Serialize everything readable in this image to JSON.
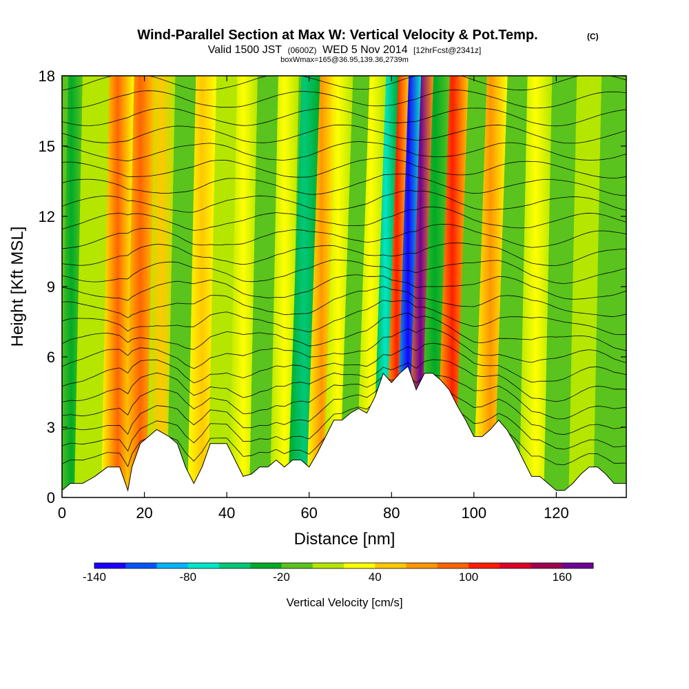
{
  "chart_data": {
    "type": "heatmap",
    "title": "Wind-Parallel Section at Max W: Vertical Velocity & Pot.Temp.",
    "title_mark": "(C)",
    "subtitle_valid": "Valid 1500 JST",
    "subtitle_z": "(0600Z)",
    "subtitle_date": "WED 5 Nov 2014",
    "subtitle_fcst": "[12hrFcst@2341z]",
    "subtitle2": "boxWmax=165@36.95,139.36,2739m",
    "xlabel": "Distance [nm]",
    "ylabel": "Height [Kft MSL]",
    "xlim": [
      0,
      137
    ],
    "ylim": [
      0,
      18
    ],
    "xticks": [
      "0",
      "20",
      "40",
      "60",
      "80",
      "100",
      "120"
    ],
    "yticks": [
      "0",
      "3",
      "6",
      "9",
      "12",
      "15",
      "18"
    ],
    "colorbar": {
      "label": "Vertical Velocity [cm/s]",
      "range": [
        -140,
        180
      ],
      "ticks": [
        "-140",
        "-80",
        "-20",
        "40",
        "100",
        "160"
      ],
      "colors": [
        "#1a00ff",
        "#0055ff",
        "#00b4ff",
        "#00e6c8",
        "#00c878",
        "#00aa28",
        "#5ac31e",
        "#b4e600",
        "#ffff00",
        "#ffc800",
        "#ff9600",
        "#ff6400",
        "#ff1e00",
        "#dc0028",
        "#a00050",
        "#6e0096"
      ]
    },
    "wind_bands": [
      {
        "x": 1,
        "w": -25
      },
      {
        "x": 7,
        "w": 10
      },
      {
        "x": 14,
        "w": 80
      },
      {
        "x": 19,
        "w": 95
      },
      {
        "x": 24,
        "w": 40
      },
      {
        "x": 29,
        "w": -15
      },
      {
        "x": 34,
        "w": 45
      },
      {
        "x": 39,
        "w": 0
      },
      {
        "x": 44,
        "w": 35
      },
      {
        "x": 49,
        "w": -15
      },
      {
        "x": 54,
        "w": 30
      },
      {
        "x": 59,
        "w": -60
      },
      {
        "x": 63,
        "w": 75
      },
      {
        "x": 67,
        "w": 20
      },
      {
        "x": 71,
        "w": -20
      },
      {
        "x": 75,
        "w": 35
      },
      {
        "x": 79,
        "w": -65
      },
      {
        "x": 81,
        "w": 105
      },
      {
        "x": 84,
        "w": -140
      },
      {
        "x": 87,
        "w": 160
      },
      {
        "x": 90,
        "w": -35
      },
      {
        "x": 95,
        "w": 115
      },
      {
        "x": 99,
        "w": -20
      },
      {
        "x": 104,
        "w": 70
      },
      {
        "x": 109,
        "w": -20
      },
      {
        "x": 115,
        "w": 20
      },
      {
        "x": 121,
        "w": -10
      },
      {
        "x": 127,
        "w": 15
      },
      {
        "x": 133,
        "w": -20
      }
    ],
    "terrain": [
      [
        0,
        0.3
      ],
      [
        2,
        0.6
      ],
      [
        5,
        0.6
      ],
      [
        8,
        0.9
      ],
      [
        11,
        1.3
      ],
      [
        14,
        1.3
      ],
      [
        15,
        0.8
      ],
      [
        16,
        0.3
      ],
      [
        17,
        1.3
      ],
      [
        19,
        2.3
      ],
      [
        21,
        2.6
      ],
      [
        23,
        2.9
      ],
      [
        26,
        2.6
      ],
      [
        28,
        2.3
      ],
      [
        30,
        1.3
      ],
      [
        32,
        0.6
      ],
      [
        34,
        1.3
      ],
      [
        36,
        2.3
      ],
      [
        38,
        2.3
      ],
      [
        40,
        2.3
      ],
      [
        42,
        1.6
      ],
      [
        44,
        0.9
      ],
      [
        46,
        1.0
      ],
      [
        48,
        1.3
      ],
      [
        50,
        1.3
      ],
      [
        52,
        1.6
      ],
      [
        54,
        1.3
      ],
      [
        56,
        1.6
      ],
      [
        58,
        1.6
      ],
      [
        60,
        1.3
      ],
      [
        62,
        1.9
      ],
      [
        64,
        2.6
      ],
      [
        66,
        3.3
      ],
      [
        68,
        3.3
      ],
      [
        70,
        3.6
      ],
      [
        72,
        3.8
      ],
      [
        74,
        3.6
      ],
      [
        76,
        4.3
      ],
      [
        78,
        5.3
      ],
      [
        80,
        4.9
      ],
      [
        82,
        5.3
      ],
      [
        84,
        5.6
      ],
      [
        86,
        4.6
      ],
      [
        88,
        5.3
      ],
      [
        90,
        5.3
      ],
      [
        92,
        5.0
      ],
      [
        94,
        4.6
      ],
      [
        96,
        3.9
      ],
      [
        98,
        3.3
      ],
      [
        100,
        2.6
      ],
      [
        102,
        2.6
      ],
      [
        104,
        2.9
      ],
      [
        106,
        3.3
      ],
      [
        108,
        2.9
      ],
      [
        110,
        2.3
      ],
      [
        112,
        1.6
      ],
      [
        114,
        0.9
      ],
      [
        116,
        0.9
      ],
      [
        118,
        0.6
      ],
      [
        120,
        0.3
      ],
      [
        122,
        0.3
      ],
      [
        124,
        0.6
      ],
      [
        126,
        1.0
      ],
      [
        128,
        1.3
      ],
      [
        130,
        1.3
      ],
      [
        132,
        1.0
      ],
      [
        134,
        0.6
      ],
      [
        137,
        0.6
      ]
    ]
  }
}
